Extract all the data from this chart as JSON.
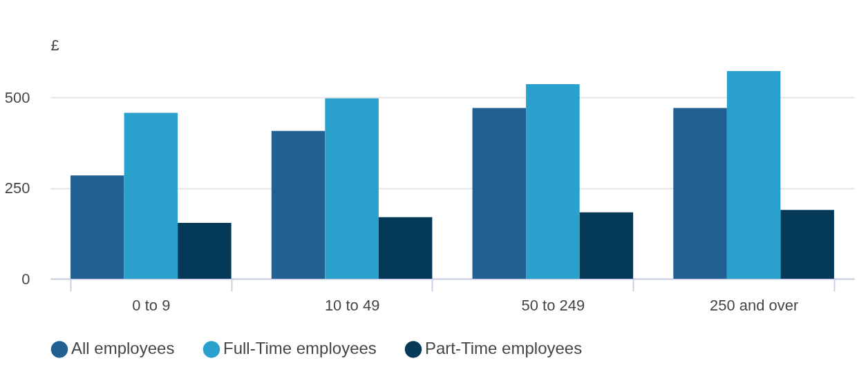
{
  "chart_data": {
    "type": "bar",
    "ylabel": "£",
    "categories": [
      "0 to 9",
      "10 to 49",
      "50 to 249",
      "250 and over"
    ],
    "series": [
      {
        "name": "All employees",
        "color": "#236092",
        "values": [
          285,
          408,
          471,
          471
        ]
      },
      {
        "name": "Full-Time employees",
        "color": "#29a1cc",
        "values": [
          458,
          498,
          537,
          573
        ]
      },
      {
        "name": "Part-Time employees",
        "color": "#043a57",
        "values": [
          154,
          170,
          183,
          190
        ]
      }
    ],
    "ylim": [
      0,
      573
    ],
    "yticks": [
      0,
      250,
      500
    ],
    "grid": "y",
    "legend": "bottom"
  }
}
